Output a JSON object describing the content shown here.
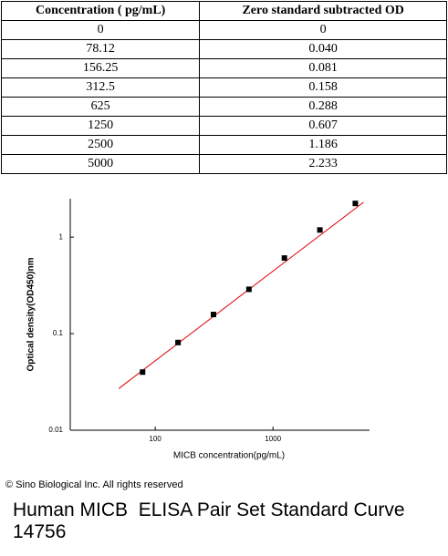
{
  "table": {
    "header": [
      "Concentration ( pg/mL)",
      "Zero standard subtracted OD"
    ],
    "rows": [
      [
        "0",
        "0"
      ],
      [
        "78.12",
        "0.040"
      ],
      [
        "156.25",
        "0.081"
      ],
      [
        "312.5",
        "0.158"
      ],
      [
        "625",
        "0.288"
      ],
      [
        "1250",
        "0.607"
      ],
      [
        "2500",
        "1.186"
      ],
      [
        "5000",
        "2.233"
      ]
    ]
  },
  "chart_data": {
    "type": "scatter",
    "x_label": "MICB concentration(pg/mL)",
    "y_label": "Optical density(OD450)nm",
    "x": [
      78.12,
      156.25,
      312.5,
      625,
      1250,
      2500,
      5000
    ],
    "values": [
      0.04,
      0.081,
      0.158,
      0.288,
      0.607,
      1.186,
      2.233
    ],
    "color": "#000000",
    "fit": {
      "x": [
        49,
        5870
      ],
      "y": [
        0.027,
        2.3
      ],
      "color": "#e00000"
    },
    "xlim": [
      19,
      6600
    ],
    "ylim": [
      0.01,
      2.5
    ],
    "xticks": [
      100,
      1000
    ],
    "yticks": [
      0.01,
      0.1,
      1
    ],
    "log_x": true,
    "log_y": true
  },
  "copyright": "© Sino Biological Inc. All rights reserved",
  "caption": "Human MICB  ELISA Pair Set Standard Curve 14756"
}
